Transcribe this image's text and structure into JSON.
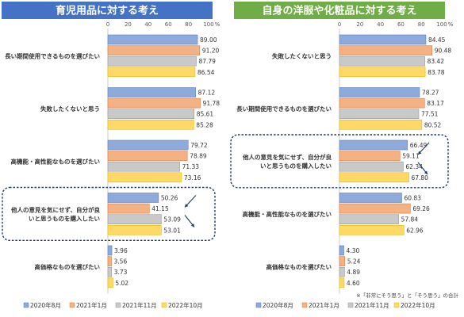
{
  "colors": {
    "series": [
      "#8eaadb",
      "#f4b183",
      "#c9c9c9",
      "#ffd966"
    ],
    "series_edge": [
      "#5b7fbe",
      "#e07b39",
      "#9a9a9a",
      "#e6b800"
    ],
    "left_header": "#4472c4",
    "right_header": "#70ad47",
    "highlight_border": "#1f3864",
    "arrow": "#1f3864"
  },
  "note": "※「非常にそう思う」と「そう思う」の合計",
  "percent_unit": "%",
  "chart_data": [
    {
      "type": "bar",
      "orientation": "horizontal",
      "title": "育児用品に対する考え",
      "xlim": [
        0,
        100
      ],
      "xticks": [
        "0",
        "20",
        "40",
        "60",
        "80",
        "100"
      ],
      "unit": "%",
      "categories": [
        "長い期間使用できるものを選びたい",
        "失敗したくないと思う",
        "高機能・高性能なものを選びたい",
        "他人の意見を気にせず、自分が良\nいと思うものを購入したい",
        "高価格なものを選びたい"
      ],
      "series": [
        {
          "name": "2020年8月",
          "values": [
            89.0,
            87.12,
            79.72,
            50.26,
            3.96
          ],
          "labels": [
            "89.00",
            "87.12",
            "79.72",
            "50.26",
            "3.96"
          ]
        },
        {
          "name": "2021年1月",
          "values": [
            91.2,
            91.78,
            78.89,
            41.15,
            3.56
          ],
          "labels": [
            "91.20",
            "91.78",
            "78.89",
            "41.15",
            "3.56"
          ]
        },
        {
          "name": "2021年11月",
          "values": [
            87.79,
            85.61,
            71.33,
            53.09,
            3.73
          ],
          "labels": [
            "87.79",
            "85.61",
            "71.33",
            "53.09",
            "3.73"
          ]
        },
        {
          "name": "2022年10月",
          "values": [
            86.54,
            85.28,
            73.16,
            53.01,
            5.02
          ],
          "labels": [
            "86.54",
            "85.28",
            "73.16",
            "53.01",
            "5.02"
          ]
        }
      ],
      "highlight_category": 3,
      "grid": false,
      "legend_position": "bottom"
    },
    {
      "type": "bar",
      "orientation": "horizontal",
      "title": "自身の洋服や化粧品に対する考え",
      "xlim": [
        0,
        100
      ],
      "xticks": [
        "0",
        "20",
        "40",
        "60",
        "80",
        "100"
      ],
      "unit": "%",
      "categories": [
        "失敗したくないと思う",
        "長い期間使用できるものを選びたい",
        "他人の意見を気にせず、自分が良\nいと思うものを購入したい",
        "高機能・高性能なものを選びたい",
        "高価格なものを選びたい"
      ],
      "series": [
        {
          "name": "2020年8月",
          "values": [
            84.45,
            78.27,
            66.49,
            60.83,
            4.3
          ],
          "labels": [
            "84.45",
            "78.27",
            "66.49",
            "60.83",
            "4.30"
          ]
        },
        {
          "name": "2021年1月",
          "values": [
            90.48,
            83.17,
            59.11,
            69.26,
            5.24
          ],
          "labels": [
            "90.48",
            "83.17",
            "59.11",
            "69.26",
            "5.24"
          ]
        },
        {
          "name": "2021年11月",
          "values": [
            83.42,
            77.51,
            62.34,
            57.84,
            4.89
          ],
          "labels": [
            "83.42",
            "77.51",
            "62.34",
            "57.84",
            "4.89"
          ]
        },
        {
          "name": "2022年10月",
          "values": [
            83.78,
            80.52,
            67.8,
            62.96,
            4.6
          ],
          "labels": [
            "83.78",
            "80.52",
            "67.80",
            "62.96",
            "4.60"
          ]
        }
      ],
      "highlight_category": 2,
      "grid": false,
      "legend_position": "bottom"
    }
  ]
}
